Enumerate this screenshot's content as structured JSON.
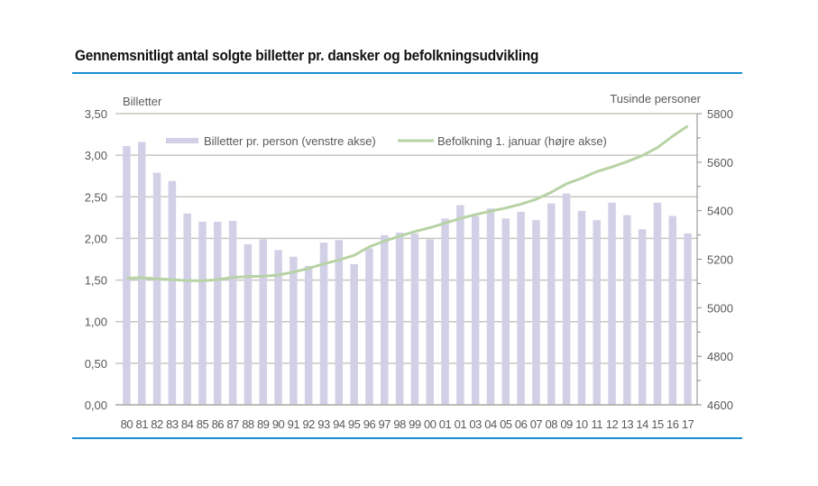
{
  "title": "Gennemsnitligt antal solgte billetter pr. dansker og befolkningsudvikling",
  "colors": {
    "accent_rule": "#1a8fd0",
    "bars": "#d2d0e6",
    "line": "#b7d3a5",
    "grid": "#c8c6bf",
    "axis_text": "#595959"
  },
  "chart_data": {
    "type": "bar",
    "title": "Gennemsnitligt antal solgte billetter pr. dansker og befolkningsudvikling",
    "ylabel": "Billetter",
    "y2label": "Tusinde personer",
    "xlabel": "",
    "ylim": [
      0,
      3.5
    ],
    "y2lim": [
      4600,
      5800
    ],
    "yticks": [
      "0,00",
      "0,50",
      "1,00",
      "1,50",
      "2,00",
      "2,50",
      "3,00",
      "3,50"
    ],
    "y2ticks": [
      "4600",
      "4800",
      "5000",
      "5200",
      "5400",
      "5600",
      "5800"
    ],
    "grid": true,
    "legend_position": "top",
    "categories": [
      "80",
      "81",
      "82",
      "83",
      "84",
      "85",
      "86",
      "87",
      "88",
      "89",
      "90",
      "91",
      "92",
      "93",
      "94",
      "95",
      "96",
      "97",
      "98",
      "99",
      "00",
      "01",
      "01",
      "03",
      "04",
      "05",
      "06",
      "07",
      "08",
      "09",
      "10",
      "11",
      "12",
      "13",
      "14",
      "15",
      "16",
      "17"
    ],
    "series": [
      {
        "name": "Billetter pr. person (venstre akse)",
        "type": "bar",
        "axis": "left",
        "values": [
          3.11,
          3.16,
          2.79,
          2.69,
          2.3,
          2.2,
          2.2,
          2.21,
          1.93,
          1.99,
          1.86,
          1.78,
          1.67,
          1.95,
          1.98,
          1.69,
          1.88,
          2.04,
          2.07,
          2.06,
          1.99,
          2.24,
          2.4,
          2.27,
          2.36,
          2.24,
          2.32,
          2.22,
          2.42,
          2.54,
          2.33,
          2.22,
          2.43,
          2.28,
          2.11,
          2.43,
          2.27,
          2.06
        ]
      },
      {
        "name": "Befolkning 1. januar (højre akse)",
        "type": "line",
        "axis": "right",
        "values": [
          5122,
          5124,
          5119,
          5116,
          5112,
          5111,
          5116,
          5125,
          5129,
          5130,
          5135,
          5147,
          5162,
          5181,
          5197,
          5216,
          5251,
          5275,
          5295,
          5314,
          5330,
          5349,
          5368,
          5384,
          5398,
          5411,
          5427,
          5447,
          5476,
          5511,
          5534,
          5561,
          5580,
          5602,
          5627,
          5660,
          5707,
          5749
        ]
      }
    ]
  }
}
